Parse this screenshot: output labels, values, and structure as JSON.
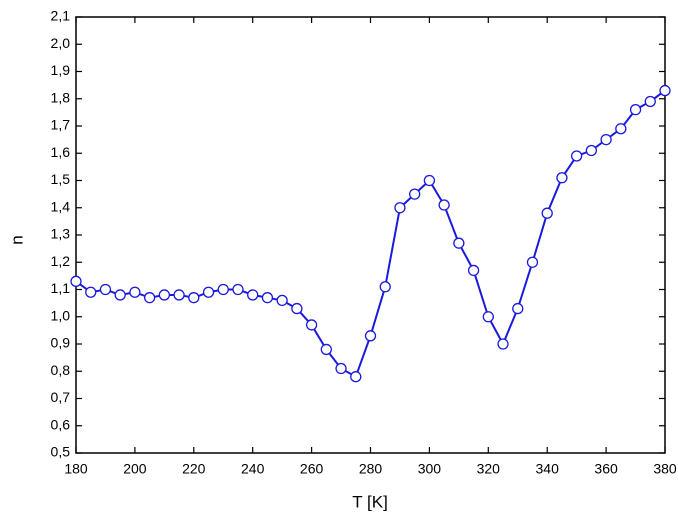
{
  "chart_data": {
    "type": "line",
    "x_label": "T [K]",
    "y_label": "n",
    "x": [
      180,
      185,
      190,
      195,
      200,
      205,
      210,
      215,
      220,
      225,
      230,
      235,
      240,
      245,
      250,
      255,
      260,
      265,
      270,
      275,
      280,
      285,
      290,
      295,
      300,
      305,
      310,
      315,
      320,
      325,
      330,
      335,
      340,
      345,
      350,
      355,
      360,
      365,
      370,
      375,
      380
    ],
    "series": [
      {
        "color": "#1a1adc",
        "marker": "circle",
        "values": [
          1.13,
          1.09,
          1.1,
          1.08,
          1.09,
          1.07,
          1.08,
          1.08,
          1.07,
          1.09,
          1.1,
          1.1,
          1.08,
          1.07,
          1.06,
          1.03,
          0.97,
          0.88,
          0.81,
          0.78,
          0.93,
          1.11,
          1.4,
          1.45,
          1.5,
          1.41,
          1.27,
          1.17,
          1.0,
          0.9,
          1.03,
          1.2,
          1.38,
          1.51,
          1.59,
          1.61,
          1.65,
          1.69,
          1.76,
          1.79,
          1.83
        ]
      }
    ],
    "xlim": [
      180,
      380
    ],
    "xticks": [
      180,
      200,
      220,
      240,
      260,
      280,
      300,
      320,
      340,
      360,
      380
    ],
    "ylim": [
      0.5,
      2.1
    ],
    "yticks": [
      {
        "value": 0.5,
        "label": "0,5"
      },
      {
        "value": 0.6,
        "label": "0,6"
      },
      {
        "value": 0.7,
        "label": "0,7"
      },
      {
        "value": 0.8,
        "label": "0,8"
      },
      {
        "value": 0.9,
        "label": "0,9"
      },
      {
        "value": 1.0,
        "label": "1,0"
      },
      {
        "value": 1.1,
        "label": "1,1"
      },
      {
        "value": 1.2,
        "label": "1,2"
      },
      {
        "value": 1.3,
        "label": "1,3"
      },
      {
        "value": 1.4,
        "label": "1,4"
      },
      {
        "value": 1.5,
        "label": "1,5"
      },
      {
        "value": 1.6,
        "label": "1,6"
      },
      {
        "value": 1.7,
        "label": "1,7"
      },
      {
        "value": 1.8,
        "label": "1,8"
      },
      {
        "value": 1.9,
        "label": "1,9"
      },
      {
        "value": 2.0,
        "label": "2,0"
      },
      {
        "value": 2.1,
        "label": "2,1"
      }
    ],
    "grid": false
  }
}
